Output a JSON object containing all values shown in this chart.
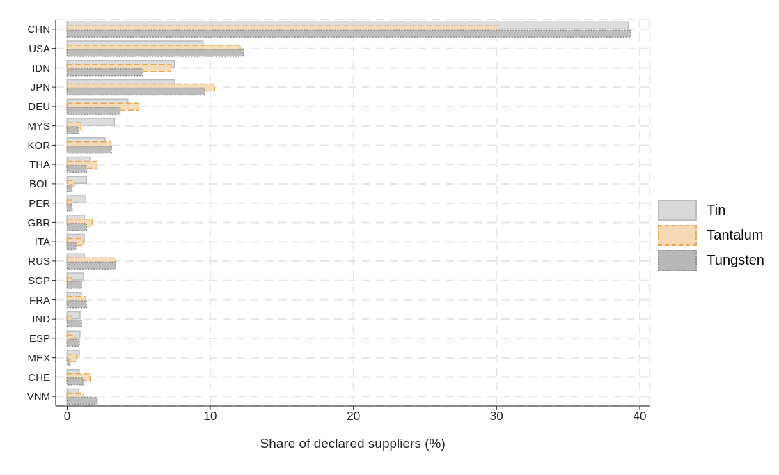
{
  "chart_data": {
    "type": "bar",
    "orientation": "horizontal",
    "xlabel": "Share of declared suppliers (%)",
    "categories": [
      "CHN",
      "USA",
      "IDN",
      "JPN",
      "DEU",
      "MYS",
      "KOR",
      "THA",
      "BOL",
      "PER",
      "GBR",
      "ITA",
      "RUS",
      "SGP",
      "FRA",
      "IND",
      "ESP",
      "MEX",
      "CHE",
      "VNM"
    ],
    "series": [
      {
        "name": "Tin",
        "color": "#d9d9d9",
        "values": [
          39.2,
          9.5,
          7.5,
          7.5,
          4.25,
          3.3,
          2.65,
          1.65,
          1.35,
          1.3,
          1.2,
          1.2,
          1.2,
          1.15,
          1.0,
          0.9,
          0.9,
          0.85,
          0.85,
          0.8
        ]
      },
      {
        "name": "Tantalum",
        "color": "#f5d9b5",
        "values": [
          30.1,
          12.1,
          7.25,
          10.3,
          5.0,
          0.95,
          3.05,
          2.1,
          0.5,
          0.3,
          1.75,
          1.15,
          3.4,
          0.3,
          1.3,
          0.3,
          0.5,
          0.65,
          1.6,
          1.15
        ]
      },
      {
        "name": "Tungsten",
        "color": "#b8b8b8",
        "values": [
          39.35,
          12.3,
          5.25,
          9.6,
          3.7,
          0.75,
          3.1,
          1.35,
          0.35,
          0.35,
          1.35,
          0.6,
          3.35,
          1.0,
          1.35,
          1.0,
          0.85,
          0.2,
          1.1,
          2.1
        ]
      }
    ],
    "xlim": [
      -0.8,
      40.7
    ],
    "xticks": [
      0,
      10,
      20,
      30,
      40
    ],
    "grid": true,
    "legend": "right"
  }
}
